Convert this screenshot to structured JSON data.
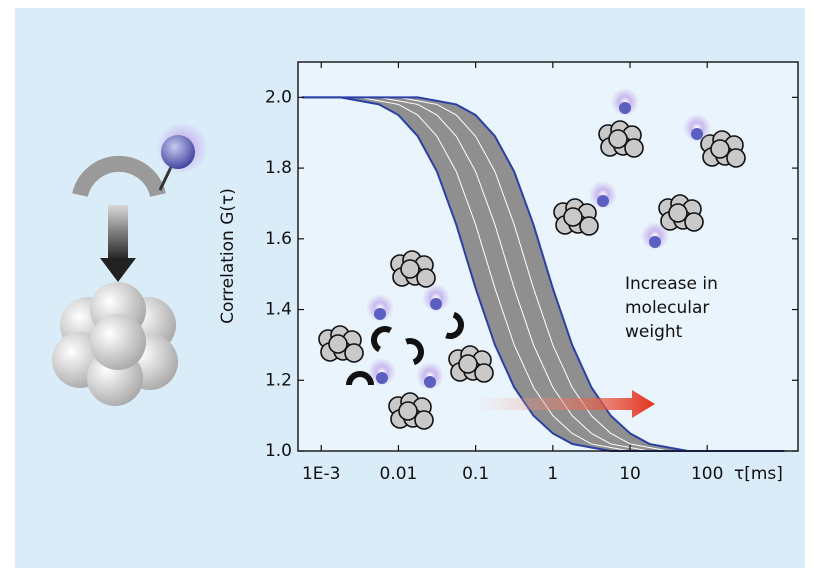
{
  "chart_data": {
    "type": "line",
    "y_label": "Correlation G(τ)",
    "x_label": "τ[ms]",
    "annotation": [
      "Increase in",
      "molecular",
      "weight"
    ],
    "log_x": true,
    "xlim": [
      0.0005,
      1500
    ],
    "ylim": [
      1.0,
      2.1
    ],
    "xticks": [
      {
        "value": 0.001,
        "label": "1E-3"
      },
      0.01,
      0.1,
      1,
      10,
      100
    ],
    "yticks": [
      {
        "value": 1,
        "label": "1.0"
      },
      1.2,
      1.4,
      1.6,
      1.8,
      {
        "value": 2,
        "label": "2.0"
      }
    ],
    "band_color": "#8f8f8f",
    "x": [
      0.000562,
      0.001,
      0.00178,
      0.00316,
      0.00562,
      0.01,
      0.0178,
      0.0316,
      0.0562,
      0.1,
      0.178,
      0.316,
      0.562,
      1,
      1.78,
      3.16,
      5.62,
      10,
      17.8,
      31.6,
      56.2,
      100,
      178,
      316,
      562,
      1000
    ],
    "series": [
      {
        "color": "#2b3fa6",
        "values": [
          2.0,
          2.0,
          2.0,
          1.99,
          1.98,
          1.95,
          1.89,
          1.79,
          1.64,
          1.46,
          1.3,
          1.18,
          1.1,
          1.05,
          1.02,
          1.01,
          1.0,
          1.0,
          1.0,
          1.0,
          1.0,
          1.0,
          1.0,
          1.0,
          1.0,
          1.0
        ]
      },
      {
        "color": "#ffffff",
        "values": [
          2.0,
          2.0,
          2.0,
          2.0,
          1.99,
          1.98,
          1.95,
          1.89,
          1.79,
          1.64,
          1.46,
          1.3,
          1.18,
          1.1,
          1.05,
          1.02,
          1.01,
          1.0,
          1.0,
          1.0,
          1.0,
          1.0,
          1.0,
          1.0,
          1.0,
          1.0
        ]
      },
      {
        "color": "#ffffff",
        "values": [
          2.0,
          2.0,
          2.0,
          2.0,
          2.0,
          1.99,
          1.98,
          1.95,
          1.89,
          1.79,
          1.64,
          1.46,
          1.3,
          1.18,
          1.1,
          1.05,
          1.02,
          1.01,
          1.0,
          1.0,
          1.0,
          1.0,
          1.0,
          1.0,
          1.0,
          1.0
        ]
      },
      {
        "color": "#ffffff",
        "values": [
          2.0,
          2.0,
          2.0,
          2.0,
          2.0,
          2.0,
          1.99,
          1.98,
          1.95,
          1.89,
          1.79,
          1.64,
          1.46,
          1.3,
          1.18,
          1.1,
          1.05,
          1.02,
          1.01,
          1.0,
          1.0,
          1.0,
          1.0,
          1.0,
          1.0,
          1.0
        ]
      },
      {
        "color": "#2b3fa6",
        "values": [
          2.0,
          2.0,
          2.0,
          2.0,
          2.0,
          2.0,
          2.0,
          1.99,
          1.98,
          1.95,
          1.89,
          1.79,
          1.64,
          1.46,
          1.3,
          1.18,
          1.1,
          1.05,
          1.02,
          1.01,
          1.0,
          1.0,
          1.0,
          1.0,
          1.0,
          1.0
        ]
      }
    ]
  }
}
